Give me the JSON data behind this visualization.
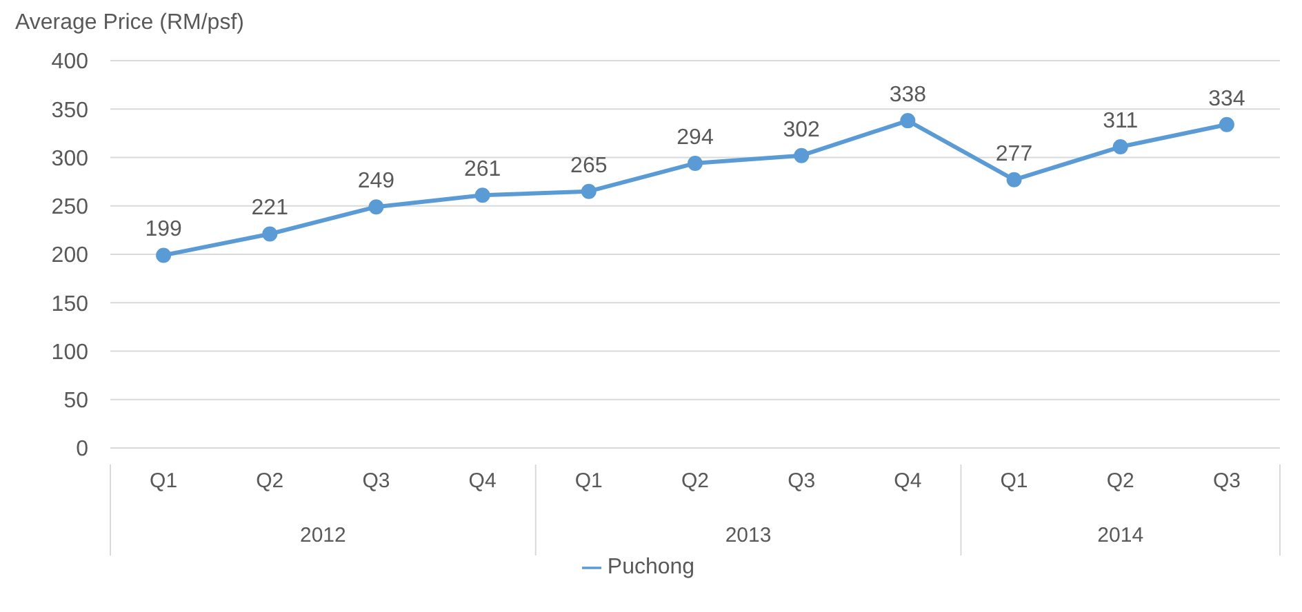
{
  "chart_data": {
    "type": "line",
    "ylabel": "Average Price (RM/psf)",
    "categories": [
      "Q1",
      "Q2",
      "Q3",
      "Q4",
      "Q1",
      "Q2",
      "Q3",
      "Q4",
      "Q1",
      "Q2",
      "Q3"
    ],
    "annotations": [
      "2012",
      "2013",
      "2014"
    ],
    "series": [
      {
        "name": "Puchong",
        "color": "#5b9bd5",
        "values": [
          199,
          221,
          249,
          261,
          265,
          294,
          302,
          338,
          277,
          311,
          334
        ]
      }
    ],
    "ylim": [
      0,
      400
    ],
    "yticks": [
      0,
      50,
      100,
      150,
      200,
      250,
      300,
      350,
      400
    ],
    "grid": "y",
    "legend": "bottom",
    "marker": "circle",
    "line_style": "solid",
    "data_labels": true
  }
}
